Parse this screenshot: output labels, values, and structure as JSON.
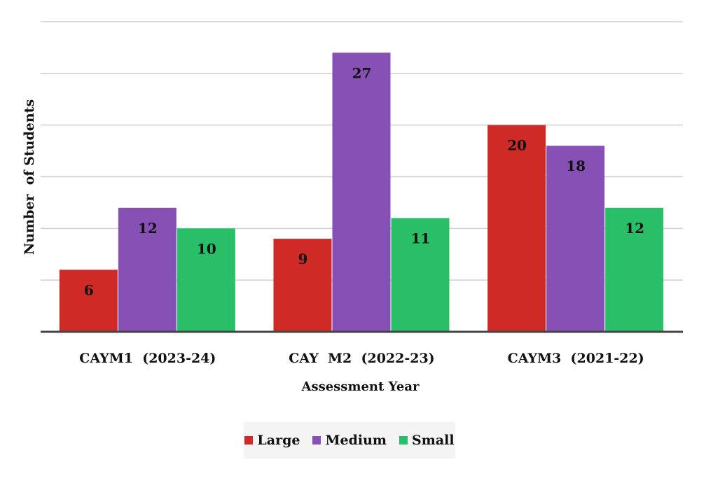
{
  "chart_data": {
    "type": "bar",
    "title": "",
    "xlabel": "Assessment Year",
    "ylabel": "Number  of Students",
    "categories": [
      "CAYM1  (2023-24)",
      "CAY  M2  (2022-23)",
      "CAYM3  (2021-22)"
    ],
    "ylim": [
      0,
      30
    ],
    "grid": true,
    "legend_position": "bottom",
    "series": [
      {
        "name": "Large",
        "color": "#d02a27",
        "values": [
          6,
          9,
          20
        ]
      },
      {
        "name": "Medium",
        "color": "#8650b4",
        "values": [
          12,
          27,
          18
        ]
      },
      {
        "name": "Small",
        "color": "#28bf68",
        "values": [
          10,
          11,
          12
        ]
      }
    ]
  }
}
